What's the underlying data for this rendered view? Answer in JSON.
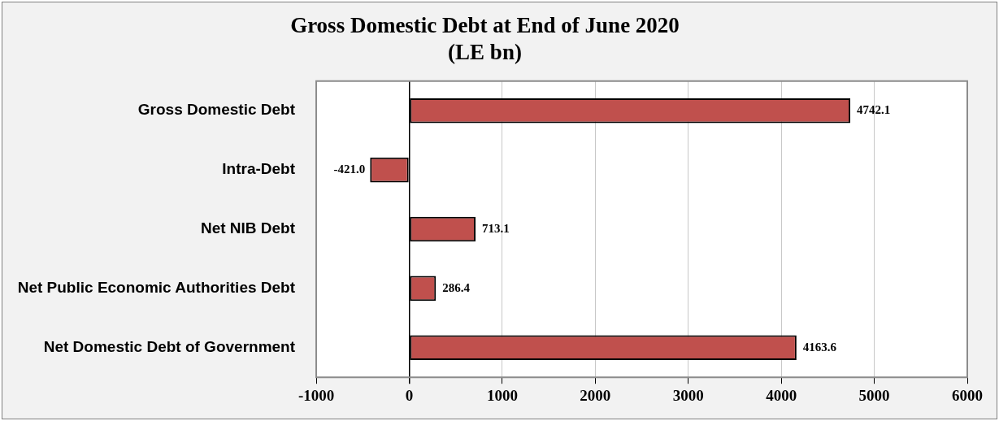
{
  "chart_data": {
    "type": "bar",
    "orientation": "horizontal",
    "title": "Gross Domestic Debt at End of June 2020",
    "subtitle": "(LE bn)",
    "categories": [
      "Gross Domestic Debt",
      "Intra-Debt",
      "Net NIB Debt",
      "Net Public Economic Authorities Debt",
      "Net Domestic Debt of Government"
    ],
    "values": [
      4742.1,
      -421.0,
      713.1,
      286.4,
      4163.6
    ],
    "value_labels": [
      "4742.1",
      "-421.0",
      "713.1",
      "286.4",
      "4163.6"
    ],
    "color": "#c0504d",
    "xlim": [
      -1000,
      6000
    ],
    "xticks": [
      -1000,
      0,
      1000,
      2000,
      3000,
      4000,
      5000,
      6000
    ],
    "grid": "x",
    "legend": false
  }
}
